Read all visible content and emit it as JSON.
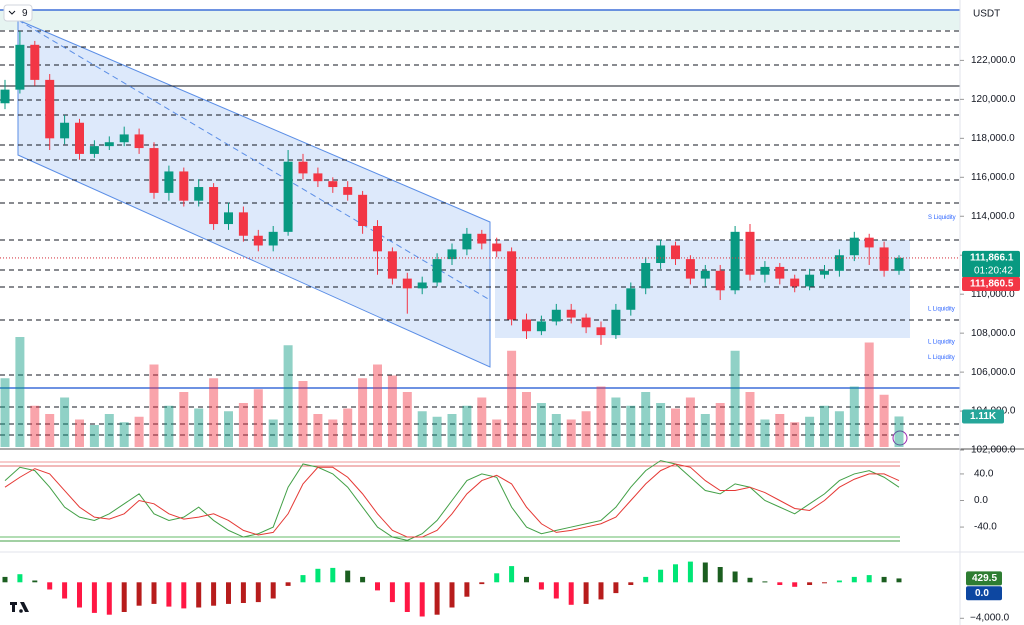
{
  "chart_data": {
    "type": "candlestick",
    "interval_label": "9",
    "currency": "USDT",
    "open": [
      119800,
      120500,
      122800,
      121000,
      118000,
      118800,
      117200,
      117600,
      117800,
      118200,
      117500,
      115200,
      116300,
      114800,
      115500,
      113600,
      114200,
      113000,
      112500,
      113200,
      116800,
      116200,
      115800,
      115500,
      115100,
      113500,
      112200,
      110800,
      110300,
      110600,
      111800,
      112300,
      113100,
      112600,
      112200,
      108700,
      108100,
      108600,
      109200,
      108800,
      108300,
      107900,
      109200,
      110300,
      111600,
      112500,
      111800,
      110800,
      111200,
      110200,
      113200,
      111000,
      111400,
      110800,
      110400,
      111000,
      111200,
      112000,
      112900,
      112400,
      111200
    ],
    "high": [
      121000,
      123500,
      123000,
      121300,
      119200,
      119000,
      117900,
      118100,
      118600,
      118500,
      117800,
      116600,
      116500,
      115900,
      115700,
      114700,
      114500,
      113300,
      113500,
      117400,
      117200,
      116500,
      116000,
      115800,
      115300,
      113800,
      112400,
      111100,
      110900,
      112100,
      112600,
      113400,
      113300,
      112900,
      112400,
      109000,
      108900,
      109500,
      109500,
      109000,
      108600,
      109500,
      110600,
      111900,
      112800,
      112700,
      112000,
      111500,
      111500,
      113500,
      113600,
      111700,
      111600,
      111000,
      111300,
      111500,
      112300,
      113200,
      113100,
      112700,
      112000
    ],
    "low": [
      119500,
      120300,
      120700,
      117400,
      117700,
      116900,
      117000,
      117400,
      117600,
      117200,
      114900,
      114800,
      114500,
      114500,
      113300,
      113300,
      112700,
      112200,
      112200,
      113000,
      115900,
      115500,
      115200,
      114800,
      113100,
      111000,
      110500,
      109000,
      110000,
      110400,
      111500,
      112000,
      112300,
      111900,
      108400,
      107700,
      107900,
      108400,
      108500,
      108000,
      107400,
      107700,
      108900,
      110000,
      111300,
      111500,
      110500,
      110400,
      109700,
      110000,
      110700,
      110600,
      110500,
      110100,
      110200,
      110800,
      110900,
      111700,
      111500,
      110900,
      111000
    ],
    "close": [
      120500,
      122800,
      121000,
      118000,
      118800,
      117200,
      117600,
      117800,
      118200,
      117500,
      115200,
      116300,
      114800,
      115500,
      113600,
      114200,
      113000,
      112500,
      113200,
      116800,
      116200,
      115800,
      115500,
      115100,
      113500,
      112200,
      110800,
      110300,
      110600,
      111800,
      112300,
      113100,
      112600,
      112200,
      108700,
      108100,
      108600,
      109200,
      108800,
      108300,
      107900,
      109200,
      110300,
      111600,
      112500,
      111800,
      110800,
      111200,
      110200,
      113200,
      111000,
      111400,
      110800,
      110400,
      111000,
      111200,
      112000,
      112900,
      112400,
      111200,
      111866
    ],
    "ylim": [
      101900,
      125100
    ],
    "yticks": [
      {
        "value": 102000,
        "label": "102,000.0"
      },
      {
        "value": 104000,
        "label": "104,000.0"
      },
      {
        "value": 106000,
        "label": "106,000.0"
      },
      {
        "value": 108000,
        "label": "108,000.0"
      },
      {
        "value": 110000,
        "label": "110,000.0"
      },
      {
        "value": 112000,
        "label": "112,000.0"
      },
      {
        "value": 114000,
        "label": "114,000.0"
      },
      {
        "value": 116000,
        "label": "116,000.0"
      },
      {
        "value": 118000,
        "label": "118,000.0"
      },
      {
        "value": 120000,
        "label": "120,000.0"
      },
      {
        "value": 122000,
        "label": "122,000.0"
      }
    ],
    "price_tags": [
      {
        "value": 111866.1,
        "label": "111,866.1",
        "color": "#089981"
      },
      {
        "value": 111860.5,
        "label": "111,860.5",
        "color": "#f23645"
      }
    ],
    "countdown": "01:20:42",
    "annotations": [
      {
        "text": "S Liquidity",
        "value": 113950
      },
      {
        "text": "L Liquidity",
        "value": 109250
      },
      {
        "text": "L Liquidity",
        "value": 107550
      },
      {
        "text": "L Liquidity",
        "value": 106750
      }
    ],
    "volume": {
      "values": [
        2.5,
        4.0,
        1.5,
        1.2,
        1.8,
        1.0,
        0.8,
        1.2,
        0.9,
        1.1,
        3.0,
        1.5,
        2.0,
        1.4,
        2.5,
        1.3,
        1.6,
        2.1,
        1.0,
        3.7,
        2.4,
        1.2,
        1.0,
        1.4,
        2.5,
        3.0,
        2.6,
        2.0,
        1.3,
        1.1,
        1.2,
        1.5,
        1.8,
        1.0,
        3.5,
        2.0,
        1.6,
        1.2,
        1.0,
        1.3,
        2.2,
        1.8,
        1.5,
        2.0,
        1.6,
        1.4,
        1.8,
        1.2,
        1.6,
        3.5,
        2.0,
        1.0,
        1.2,
        0.9,
        1.1,
        1.5,
        1.3,
        2.2,
        3.8,
        1.9,
        1.11
      ],
      "value_labels": [
        null,
        null,
        null,
        null,
        null,
        null,
        null,
        null,
        null,
        null,
        null,
        null,
        null,
        null,
        null,
        null,
        null,
        null,
        null,
        null,
        null,
        null,
        null,
        null,
        null,
        null,
        null,
        null,
        null,
        null,
        null,
        null,
        null,
        null,
        null,
        null,
        null,
        null,
        null,
        null,
        null,
        null,
        null,
        null,
        null,
        null,
        null,
        null,
        null,
        null,
        null,
        null,
        null,
        null,
        null,
        null,
        null,
        null,
        null,
        null,
        "1.11K"
      ]
    },
    "oscillator": {
      "ylim": [
        -70,
        70
      ],
      "yticks": [
        {
          "value": 40,
          "label": "40.0"
        },
        {
          "value": 0,
          "label": "0.0"
        },
        {
          "value": -40,
          "label": "-40.0"
        }
      ],
      "series": [
        {
          "color": "#43a047",
          "values": [
            30,
            50,
            45,
            20,
            -10,
            -25,
            -30,
            -20,
            -5,
            10,
            -20,
            -30,
            -25,
            -10,
            -30,
            -45,
            -55,
            -50,
            -40,
            20,
            55,
            50,
            40,
            20,
            -10,
            -40,
            -55,
            -60,
            -50,
            -30,
            0,
            30,
            40,
            35,
            -10,
            -40,
            -50,
            -45,
            -40,
            -35,
            -30,
            -10,
            20,
            45,
            60,
            55,
            35,
            15,
            10,
            25,
            20,
            0,
            -10,
            -20,
            -5,
            10,
            30,
            40,
            45,
            35,
            20
          ]
        },
        {
          "color": "#e53935",
          "values": [
            20,
            35,
            48,
            40,
            15,
            -10,
            -25,
            -28,
            -20,
            0,
            -5,
            -20,
            -28,
            -25,
            -20,
            -30,
            -45,
            -52,
            -48,
            -20,
            25,
            50,
            50,
            35,
            10,
            -20,
            -45,
            -55,
            -55,
            -45,
            -20,
            10,
            30,
            38,
            25,
            -10,
            -35,
            -48,
            -45,
            -40,
            -35,
            -25,
            0,
            25,
            45,
            55,
            50,
            30,
            15,
            15,
            20,
            12,
            0,
            -12,
            -15,
            0,
            20,
            32,
            40,
            40,
            30
          ]
        }
      ]
    },
    "macd": {
      "ylim": [
        -4300,
        2700
      ],
      "yticks": [
        {
          "value": -4000,
          "label": "−4,000.0"
        }
      ],
      "values": [
        600,
        900,
        200,
        -800,
        -1800,
        -2800,
        -3400,
        -3600,
        -3300,
        -2600,
        -2400,
        -2700,
        -2900,
        -2800,
        -2600,
        -2400,
        -2300,
        -2200,
        -1800,
        -400,
        800,
        1500,
        1600,
        1300,
        600,
        -900,
        -2200,
        -3300,
        -3800,
        -3600,
        -2800,
        -1600,
        -200,
        1000,
        1800,
        600,
        -800,
        -1800,
        -2500,
        -2400,
        -1900,
        -1200,
        -300,
        600,
        1400,
        2000,
        2300,
        2200,
        1700,
        1200,
        500,
        100,
        -300,
        -500,
        -300,
        -100,
        200,
        600,
        800,
        600,
        429.5
      ],
      "signal_tag": {
        "value": 0,
        "label": "0.0"
      }
    },
    "up_color": "#089981",
    "down_color": "#f23645"
  }
}
